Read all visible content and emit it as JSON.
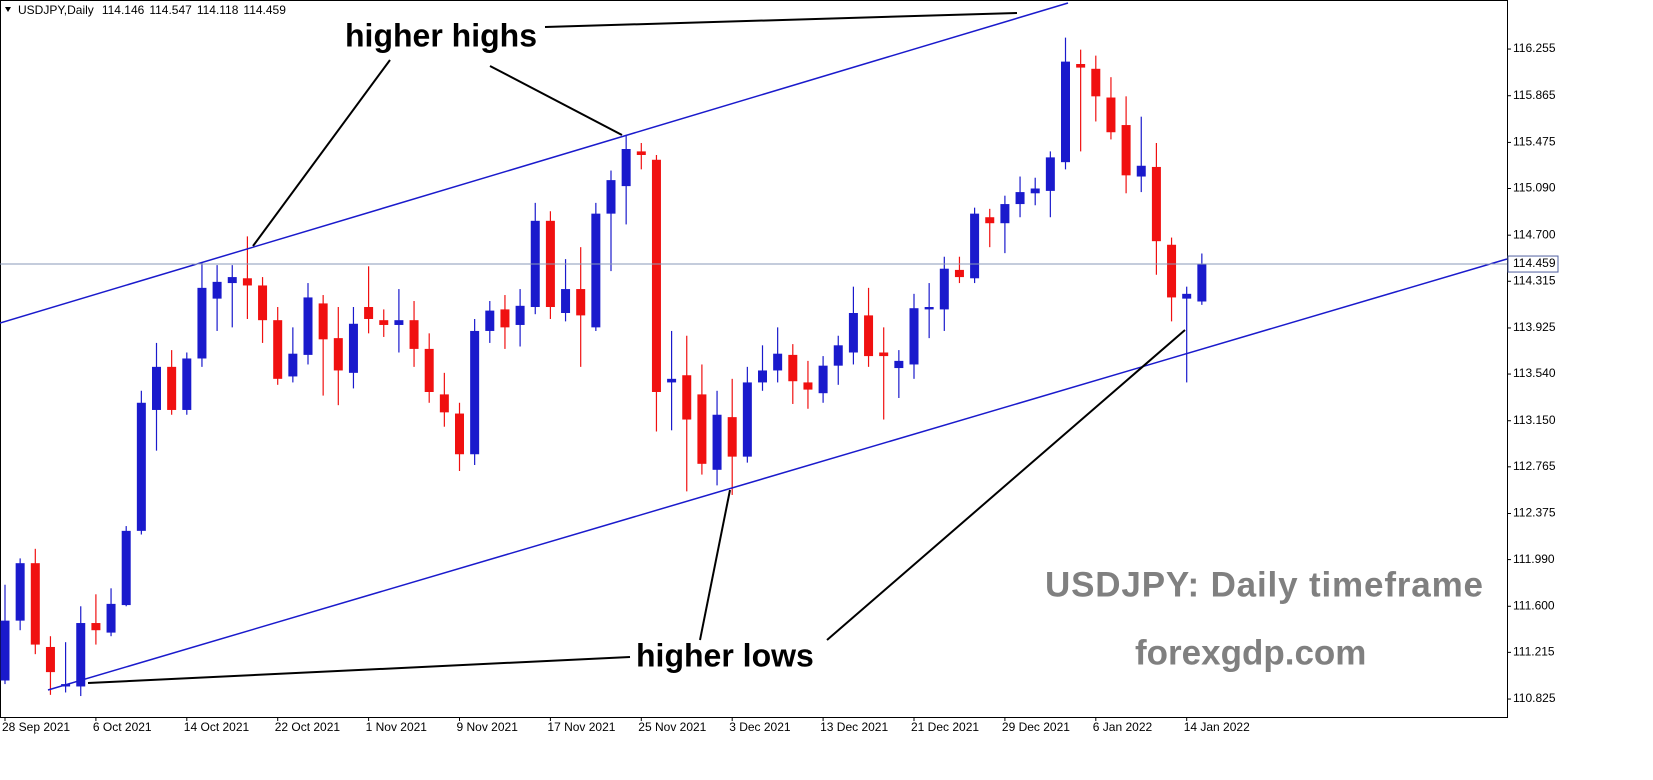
{
  "chart_data": {
    "type": "candlestick",
    "title": "USDJPY,Daily",
    "annotations": [
      "higher highs",
      "higher lows",
      "USDJPY: Daily timeframe",
      "forexgdp.com"
    ],
    "categories": [
      "28 Sep 2021",
      null,
      null,
      null,
      null,
      null,
      "6 Oct 2021",
      null,
      null,
      null,
      null,
      null,
      "14 Oct 2021",
      null,
      null,
      null,
      null,
      null,
      "22 Oct 2021",
      null,
      null,
      null,
      null,
      null,
      "1 Nov 2021",
      null,
      null,
      null,
      null,
      null,
      "9 Nov 2021",
      null,
      null,
      null,
      null,
      null,
      "17 Nov 2021",
      null,
      null,
      null,
      null,
      null,
      "25 Nov 2021",
      null,
      null,
      null,
      null,
      null,
      "3 Dec 2021",
      null,
      null,
      null,
      null,
      null,
      "13 Dec 2021",
      null,
      null,
      null,
      null,
      null,
      "21 Dec 2021",
      null,
      null,
      null,
      null,
      null,
      "29 Dec 2021",
      null,
      null,
      null,
      null,
      null,
      "6 Jan 2022",
      null,
      null,
      null,
      null,
      null,
      "14 Jan 2022",
      null
    ],
    "open": [
      110.98,
      111.48,
      111.96,
      111.26,
      110.93,
      110.93,
      111.46,
      111.38,
      111.61,
      112.23,
      113.24,
      113.6,
      113.24,
      113.67,
      114.17,
      114.3,
      114.34,
      114.28,
      113.99,
      113.52,
      113.7,
      114.13,
      113.84,
      113.55,
      114.1,
      113.99,
      113.95,
      113.99,
      113.75,
      113.37,
      113.21,
      112.87,
      113.9,
      114.08,
      113.95,
      114.1,
      114.82,
      114.05,
      114.25,
      113.93,
      114.88,
      115.11,
      115.4,
      115.33,
      113.47,
      113.53,
      113.37,
      112.74,
      113.18,
      112.85,
      113.47,
      113.57,
      113.7,
      113.47,
      113.38,
      113.61,
      113.72,
      114.03,
      113.72,
      113.59,
      113.62,
      114.08,
      114.08,
      114.41,
      114.34,
      114.85,
      114.8,
      114.96,
      115.05,
      115.07,
      115.31,
      116.13,
      116.09,
      115.85,
      115.62,
      115.19,
      115.27,
      114.62,
      114.17,
      114.146
    ],
    "high": [
      111.78,
      112.0,
      112.08,
      111.35,
      111.3,
      111.6,
      111.7,
      111.75,
      112.27,
      113.4,
      113.8,
      113.74,
      113.72,
      114.47,
      114.45,
      114.45,
      114.69,
      114.35,
      114.1,
      113.93,
      114.3,
      114.2,
      114.1,
      114.1,
      114.44,
      114.08,
      114.25,
      114.15,
      113.88,
      113.55,
      113.3,
      114.0,
      114.15,
      114.2,
      114.25,
      114.97,
      114.9,
      114.5,
      114.6,
      114.97,
      115.24,
      115.53,
      115.47,
      115.37,
      113.9,
      113.86,
      113.62,
      113.4,
      113.5,
      113.6,
      113.78,
      113.93,
      113.79,
      113.65,
      113.69,
      113.86,
      114.27,
      114.26,
      113.93,
      113.74,
      114.21,
      114.3,
      114.52,
      114.52,
      114.93,
      114.92,
      115.03,
      115.19,
      115.18,
      115.4,
      116.35,
      116.25,
      116.2,
      116.02,
      115.86,
      115.69,
      115.47,
      114.68,
      114.27,
      114.547
    ],
    "low": [
      110.95,
      111.4,
      111.2,
      110.86,
      110.88,
      110.85,
      111.28,
      111.35,
      111.6,
      112.2,
      112.9,
      113.2,
      113.2,
      113.6,
      113.9,
      113.93,
      114.0,
      113.8,
      113.45,
      113.47,
      113.62,
      113.36,
      113.28,
      113.42,
      113.88,
      113.85,
      113.72,
      113.6,
      113.3,
      113.1,
      112.73,
      112.78,
      113.8,
      113.75,
      113.77,
      114.04,
      114.0,
      113.98,
      113.6,
      113.9,
      114.4,
      114.79,
      115.25,
      113.06,
      113.07,
      112.56,
      112.7,
      112.61,
      112.53,
      112.8,
      113.4,
      113.47,
      113.29,
      113.25,
      113.3,
      113.45,
      113.62,
      113.6,
      113.16,
      113.34,
      113.5,
      113.84,
      113.9,
      114.3,
      114.3,
      114.6,
      114.55,
      114.85,
      114.95,
      114.85,
      115.25,
      115.4,
      115.65,
      115.5,
      115.05,
      115.06,
      114.37,
      113.98,
      113.47,
      114.118
    ],
    "close": [
      111.48,
      111.96,
      111.28,
      111.05,
      110.95,
      111.46,
      111.4,
      111.62,
      112.23,
      113.3,
      113.6,
      113.24,
      113.67,
      114.26,
      114.31,
      114.35,
      114.28,
      113.99,
      113.5,
      113.71,
      114.18,
      113.83,
      113.57,
      113.96,
      114.0,
      113.95,
      113.99,
      113.75,
      113.39,
      113.22,
      112.87,
      113.9,
      114.07,
      113.93,
      114.11,
      114.82,
      114.1,
      114.25,
      114.03,
      114.88,
      115.16,
      115.42,
      115.37,
      113.39,
      113.5,
      113.16,
      112.79,
      113.2,
      112.85,
      113.47,
      113.57,
      113.71,
      113.48,
      113.41,
      113.61,
      113.78,
      114.05,
      113.69,
      113.69,
      113.65,
      114.09,
      114.1,
      114.42,
      114.35,
      114.88,
      114.8,
      114.96,
      115.06,
      115.09,
      115.35,
      116.15,
      116.1,
      115.86,
      115.56,
      115.2,
      115.28,
      114.65,
      114.18,
      114.21,
      114.459
    ],
    "up_color": "#1a1acc",
    "down_color": "#f01010",
    "ylim": [
      110.675,
      116.648
    ],
    "yticks": [
      110.825,
      111.215,
      {
        "value": 111.6,
        "label": "111.600"
      },
      {
        "value": 111.99,
        "label": "111.990"
      },
      112.375,
      112.765,
      {
        "value": 113.15,
        "label": "113.150"
      },
      {
        "value": 113.54,
        "label": "113.540"
      },
      113.925,
      114.315,
      {
        "value": 114.7,
        "label": "114.700"
      },
      {
        "value": 115.09,
        "label": "115.090"
      },
      115.475,
      115.865,
      116.255
    ],
    "grid": false
  }
}
